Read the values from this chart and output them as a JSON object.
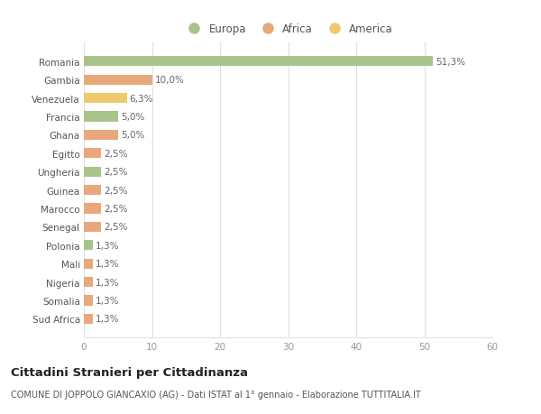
{
  "categories": [
    "Romania",
    "Gambia",
    "Venezuela",
    "Francia",
    "Ghana",
    "Egitto",
    "Ungheria",
    "Guinea",
    "Marocco",
    "Senegal",
    "Polonia",
    "Mali",
    "Nigeria",
    "Somalia",
    "Sud Africa"
  ],
  "values": [
    51.3,
    10.0,
    6.3,
    5.0,
    5.0,
    2.5,
    2.5,
    2.5,
    2.5,
    2.5,
    1.3,
    1.3,
    1.3,
    1.3,
    1.3
  ],
  "labels": [
    "51,3%",
    "10,0%",
    "6,3%",
    "5,0%",
    "5,0%",
    "2,5%",
    "2,5%",
    "2,5%",
    "2,5%",
    "2,5%",
    "1,3%",
    "1,3%",
    "1,3%",
    "1,3%",
    "1,3%"
  ],
  "colors": [
    "#a8c48a",
    "#e8a87c",
    "#f0c96e",
    "#a8c48a",
    "#e8a87c",
    "#e8a87c",
    "#a8c48a",
    "#e8a87c",
    "#e8a87c",
    "#e8a87c",
    "#a8c48a",
    "#e8a87c",
    "#e8a87c",
    "#e8a87c",
    "#e8a87c"
  ],
  "legend_labels": [
    "Europa",
    "Africa",
    "America"
  ],
  "legend_colors": [
    "#a8c48a",
    "#e8a87c",
    "#f0c96e"
  ],
  "title": "Cittadini Stranieri per Cittadinanza",
  "subtitle": "COMUNE DI JOPPOLO GIANCAXIO (AG) - Dati ISTAT al 1° gennaio - Elaborazione TUTTITALIA.IT",
  "xlim": [
    0,
    60
  ],
  "xticks": [
    0,
    10,
    20,
    30,
    40,
    50,
    60
  ],
  "background_color": "#ffffff",
  "grid_color": "#e0e0e0",
  "bar_height": 0.55
}
